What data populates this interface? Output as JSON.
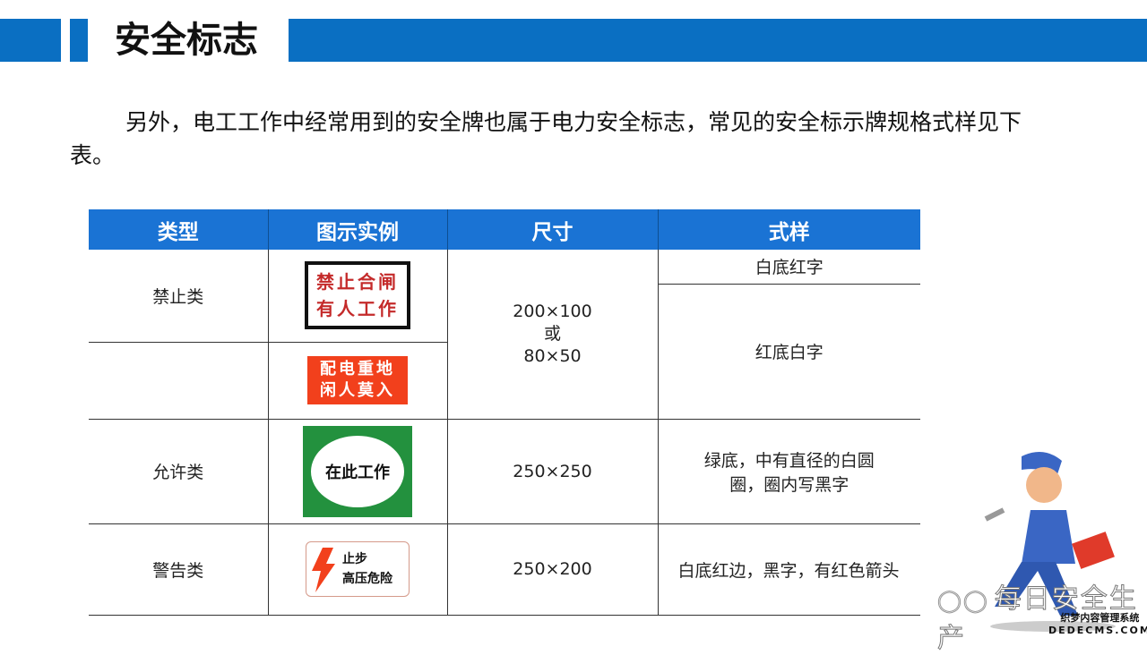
{
  "header": {
    "title": "安全标志",
    "accent": "#0a6fc2"
  },
  "paragraph": "另外，电工工作中经常用到的安全牌也属于电力安全标志，常见的安全标示牌规格式样见下表。",
  "table": {
    "headers": [
      "类型",
      "图示实例",
      "尺寸",
      "式样"
    ],
    "header_color": "#1a73d4",
    "rows": [
      {
        "type": "禁止类",
        "size": [
          "200×100",
          "或",
          "80×50"
        ],
        "signs": [
          {
            "lines": [
              "禁止合闸",
              "有人工作"
            ]
          },
          {
            "lines": [
              "配电重地",
              "闲人莫入"
            ]
          }
        ],
        "styles": [
          "白底红字",
          "红底白字"
        ]
      },
      {
        "type": "允许类",
        "size": "250×250",
        "sign": "在此工作",
        "style": "绿底，中有直径的白圆圈，圈内写黑字"
      },
      {
        "type": "警告类",
        "size": "250×200",
        "sign": [
          "止步",
          "高压危险"
        ],
        "style": "白底红边，黑字，有红色箭头"
      }
    ]
  },
  "watermark": {
    "text": "每日安全生产",
    "icon": "wechat-icon",
    "cms_line1": "织梦内容管理系统",
    "cms_line2": "DEDECMS.COM"
  }
}
